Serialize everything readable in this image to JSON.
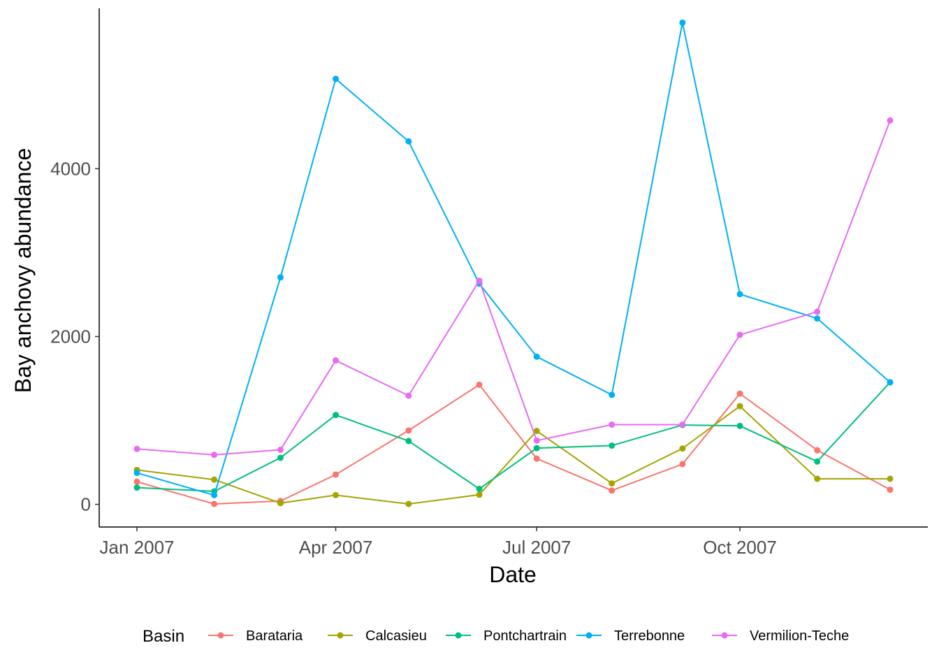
{
  "chart_data": {
    "type": "line",
    "xlabel": "Date",
    "ylabel": "Bay anchovy abundance",
    "x": [
      "2007-01-01",
      "2007-02-05",
      "2007-03-07",
      "2007-04-01",
      "2007-05-04",
      "2007-06-05",
      "2007-07-01",
      "2007-08-04",
      "2007-09-05",
      "2007-10-01",
      "2007-11-05",
      "2007-12-08"
    ],
    "x_ticks": [
      "Jan 2007",
      "Apr 2007",
      "Jul 2007",
      "Oct 2007"
    ],
    "x_tick_dates": [
      "2007-01-01",
      "2007-04-01",
      "2007-07-01",
      "2007-10-01"
    ],
    "y_ticks": [
      "0",
      "2000",
      "4000"
    ],
    "ylim": [
      -270,
      5910
    ],
    "grid": false,
    "legend": {
      "title": "Basin",
      "position": "bottom"
    },
    "series": [
      {
        "name": "Barataria",
        "color": "#F8766D",
        "values": [
          270,
          5,
          40,
          355,
          880,
          1425,
          545,
          165,
          480,
          1320,
          645,
          175
        ]
      },
      {
        "name": "Calcasieu",
        "color": "#A3A500",
        "values": [
          410,
          295,
          15,
          110,
          5,
          115,
          875,
          250,
          665,
          1170,
          305,
          305
        ]
      },
      {
        "name": "Pontchartrain",
        "color": "#00BF7D",
        "values": [
          200,
          155,
          555,
          1065,
          755,
          185,
          670,
          700,
          945,
          935,
          510,
          1455
        ]
      },
      {
        "name": "Terrebonne",
        "color": "#00B0F6",
        "values": [
          375,
          110,
          2705,
          5070,
          4325,
          2630,
          1760,
          1305,
          5740,
          2505,
          2215,
          1455
        ]
      },
      {
        "name": "Vermilion-Teche",
        "color": "#E76BF3",
        "values": [
          660,
          590,
          650,
          1715,
          1295,
          2665,
          760,
          950,
          950,
          2020,
          2295,
          4575
        ]
      }
    ]
  }
}
